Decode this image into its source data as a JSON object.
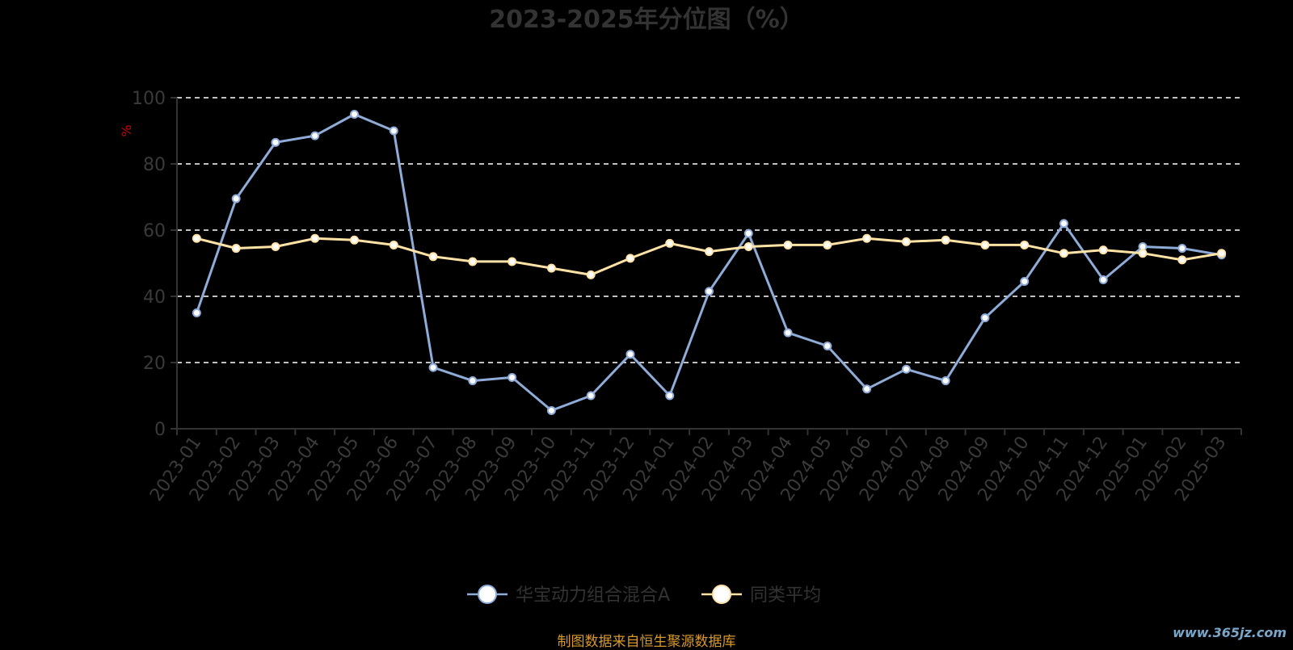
{
  "chart_data": {
    "type": "line",
    "title": "2023-2025年分位图（%）",
    "ylabel": "%",
    "ylim": [
      0,
      100
    ],
    "yticks": [
      0,
      20,
      40,
      60,
      80,
      100
    ],
    "grid": "horizontal dashed",
    "legend_position": "bottom-center",
    "categories": [
      "2023-01",
      "2023-02",
      "2023-03",
      "2023-04",
      "2023-05",
      "2023-06",
      "2023-07",
      "2023-08",
      "2023-09",
      "2023-10",
      "2023-11",
      "2023-12",
      "2024-01",
      "2024-02",
      "2024-03",
      "2024-04",
      "2024-05",
      "2024-06",
      "2024-07",
      "2024-08",
      "2024-09",
      "2024-10",
      "2024-11",
      "2024-12",
      "2025-01",
      "2025-02",
      "2025-03"
    ],
    "series": [
      {
        "name": "华宝动力组合混合A",
        "color": "#8fabd8",
        "values": [
          35,
          69.5,
          86.5,
          88.5,
          95,
          90,
          18.5,
          14.5,
          15.5,
          5.5,
          10,
          22.5,
          10,
          41.5,
          59,
          29,
          25,
          12,
          18,
          14.5,
          33.5,
          44.5,
          62,
          45,
          55,
          54.5,
          52.5
        ]
      },
      {
        "name": "同类平均",
        "color": "#ffe2a6",
        "values": [
          57.5,
          54.5,
          55,
          57.5,
          57,
          55.5,
          52,
          50.5,
          50.5,
          48.5,
          46.5,
          51.5,
          56,
          53.5,
          55,
          55.5,
          55.5,
          57.5,
          56.5,
          57,
          55.5,
          55.5,
          53,
          54,
          53,
          51,
          53
        ]
      }
    ]
  },
  "footer": {
    "source": "制图数据来自恒生聚源数据库",
    "watermark": "www.365jz.com"
  }
}
